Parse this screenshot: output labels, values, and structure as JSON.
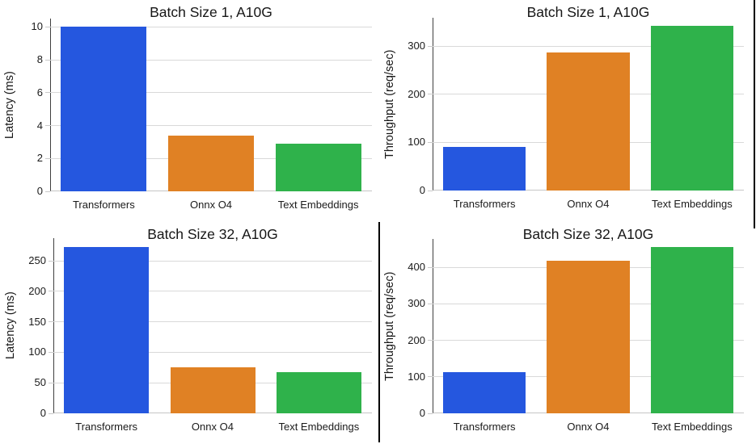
{
  "colors": {
    "bar_blue": "#2557df",
    "bar_orange": "#e08124",
    "bar_green": "#2fb24b",
    "gridline": "#d9d9d9",
    "left_spine": "#3f3f3f",
    "baseline": "#c6c6c6",
    "text": "#1a1a1a",
    "divider": "#000000"
  },
  "chart_data": [
    {
      "type": "bar",
      "title": "Batch Size 1, A10G",
      "xlabel": "",
      "ylabel": "Latency (ms)",
      "categories": [
        "Transformers",
        "Onnx O4",
        "Text Embeddings"
      ],
      "values": [
        10.0,
        3.4,
        2.9
      ],
      "yticks": [
        0,
        2,
        4,
        6,
        8,
        10
      ],
      "ylim": [
        0,
        10.5
      ],
      "grid": "horizontal",
      "legend": "none",
      "bar_colors": [
        "#2557df",
        "#e08124",
        "#2fb24b"
      ]
    },
    {
      "type": "bar",
      "title": "Batch Size 1, A10G",
      "xlabel": "",
      "ylabel": "Throughput (req/sec)",
      "categories": [
        "Transformers",
        "Onnx O4",
        "Text Embeddings"
      ],
      "values": [
        90,
        287,
        342
      ],
      "yticks": [
        0,
        100,
        200,
        300
      ],
      "ylim": [
        0,
        359
      ],
      "grid": "horizontal",
      "legend": "none",
      "bar_colors": [
        "#2557df",
        "#e08124",
        "#2fb24b"
      ]
    },
    {
      "type": "bar",
      "title": "Batch Size 32, A10G",
      "xlabel": "",
      "ylabel": "Latency (ms)",
      "categories": [
        "Transformers",
        "Onnx O4",
        "Text Embeddings"
      ],
      "values": [
        273,
        75,
        68
      ],
      "yticks": [
        0,
        50,
        100,
        150,
        200,
        250
      ],
      "ylim": [
        0,
        287
      ],
      "grid": "horizontal",
      "legend": "none",
      "bar_colors": [
        "#2557df",
        "#e08124",
        "#2fb24b"
      ]
    },
    {
      "type": "bar",
      "title": "Batch Size 32, A10G",
      "xlabel": "",
      "ylabel": "Throughput (req/sec)",
      "categories": [
        "Transformers",
        "Onnx O4",
        "Text Embeddings"
      ],
      "values": [
        114,
        419,
        455
      ],
      "yticks": [
        0,
        100,
        200,
        300,
        400
      ],
      "ylim": [
        0,
        478
      ],
      "grid": "horizontal",
      "legend": "none",
      "bar_colors": [
        "#2557df",
        "#e08124",
        "#2fb24b"
      ]
    }
  ]
}
